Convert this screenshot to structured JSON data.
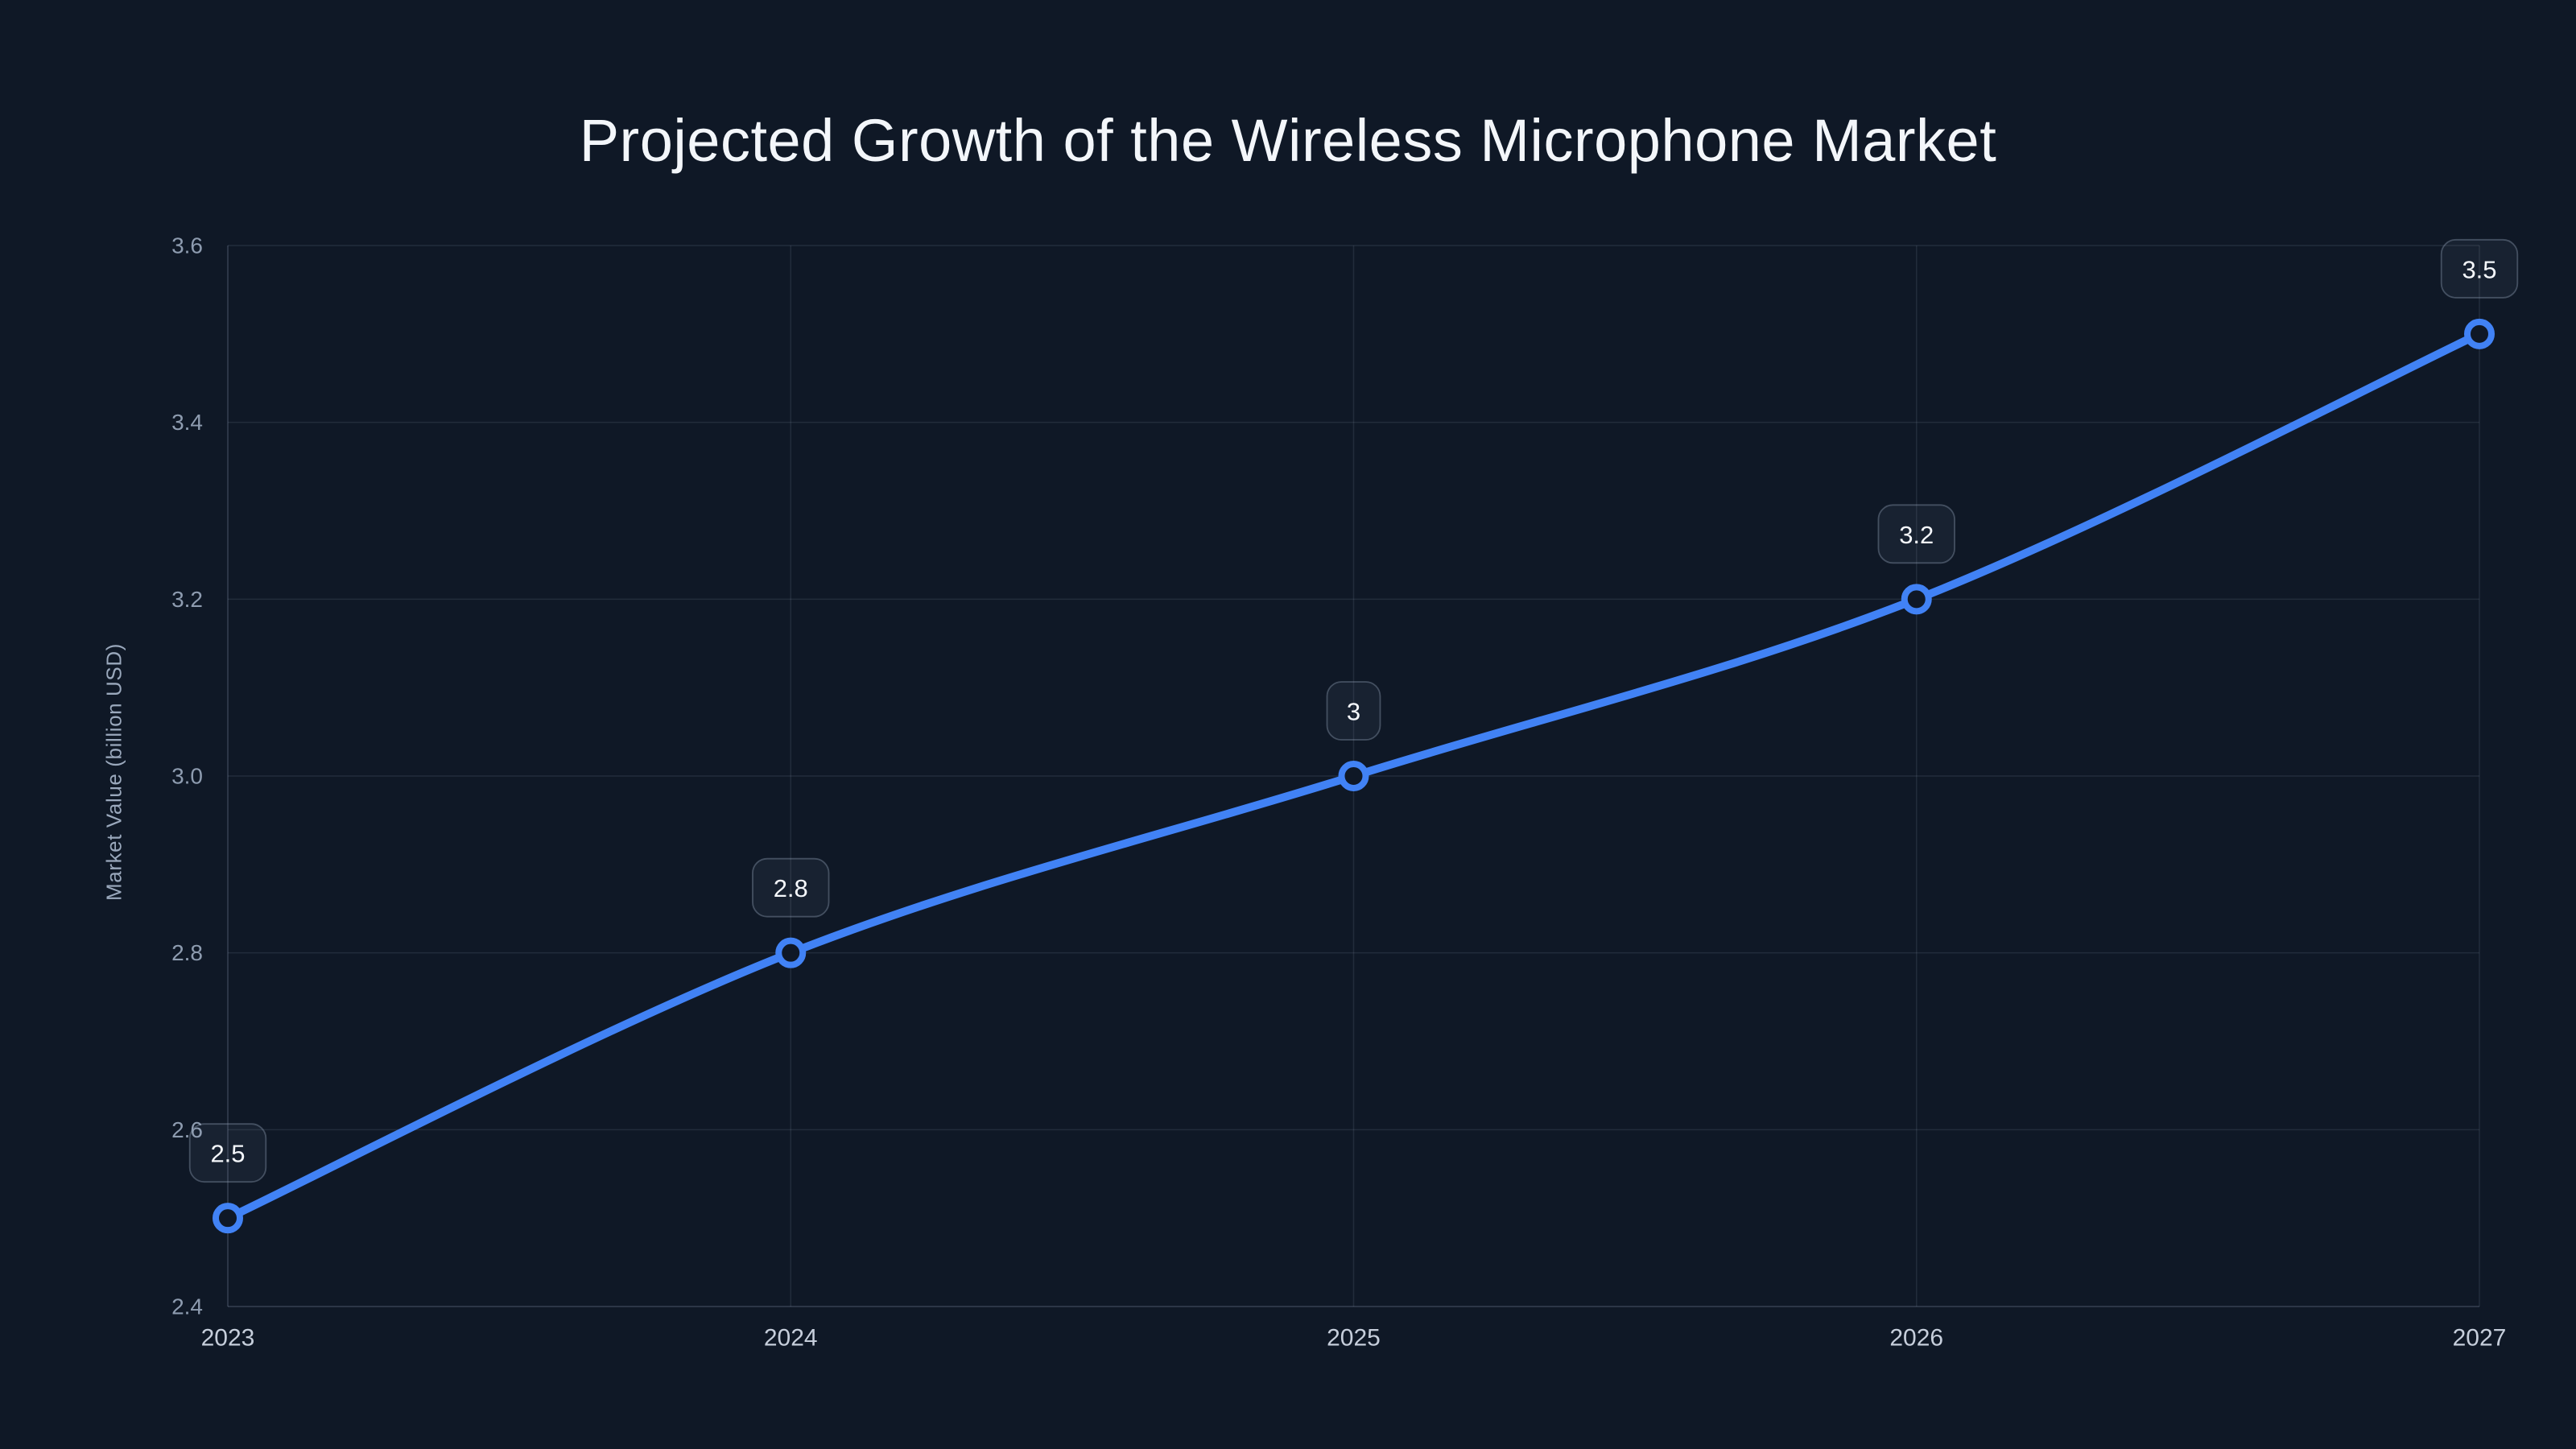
{
  "page": {
    "background": "#0f1826"
  },
  "chart_data": {
    "type": "line",
    "title": "Projected Growth of the Wireless Microphone Market",
    "x": [
      "2023",
      "2024",
      "2025",
      "2026",
      "2027"
    ],
    "series": [
      {
        "name": "Market Value",
        "values": [
          2.5,
          2.8,
          3.0,
          3.2,
          3.5
        ]
      }
    ],
    "point_labels": [
      "2.5",
      "2.8",
      "3",
      "3.2",
      "3.5"
    ],
    "xlabel": "",
    "ylabel": "Market Value (billion USD)",
    "ylim": [
      2.4,
      3.6
    ],
    "yticks": [
      2.4,
      2.6,
      2.8,
      3.0,
      3.2,
      3.4,
      3.6
    ],
    "ytick_labels": [
      "2.4",
      "2.6",
      "2.8",
      "3.0",
      "3.2",
      "3.4",
      "3.6"
    ],
    "grid": true,
    "legend": false,
    "smooth": true
  },
  "colors": {
    "background": "#0f1826",
    "line": "#4182f5",
    "point_ring": "#4182f5",
    "point_fill": "#0f1826",
    "grid": "rgba(148,163,184,0.15)",
    "axis": "rgba(148,163,184,0.30)",
    "title_text": "#f3f6fa",
    "x_tick_text": "#c6cedb",
    "y_tick_text": "#8e9cb0",
    "axis_title_text": "#9aa8bc",
    "label_box_fill": "rgba(160,175,195,0.07)",
    "label_box_border": "rgba(148,163,184,0.38)",
    "label_text": "#f5f8fc"
  }
}
